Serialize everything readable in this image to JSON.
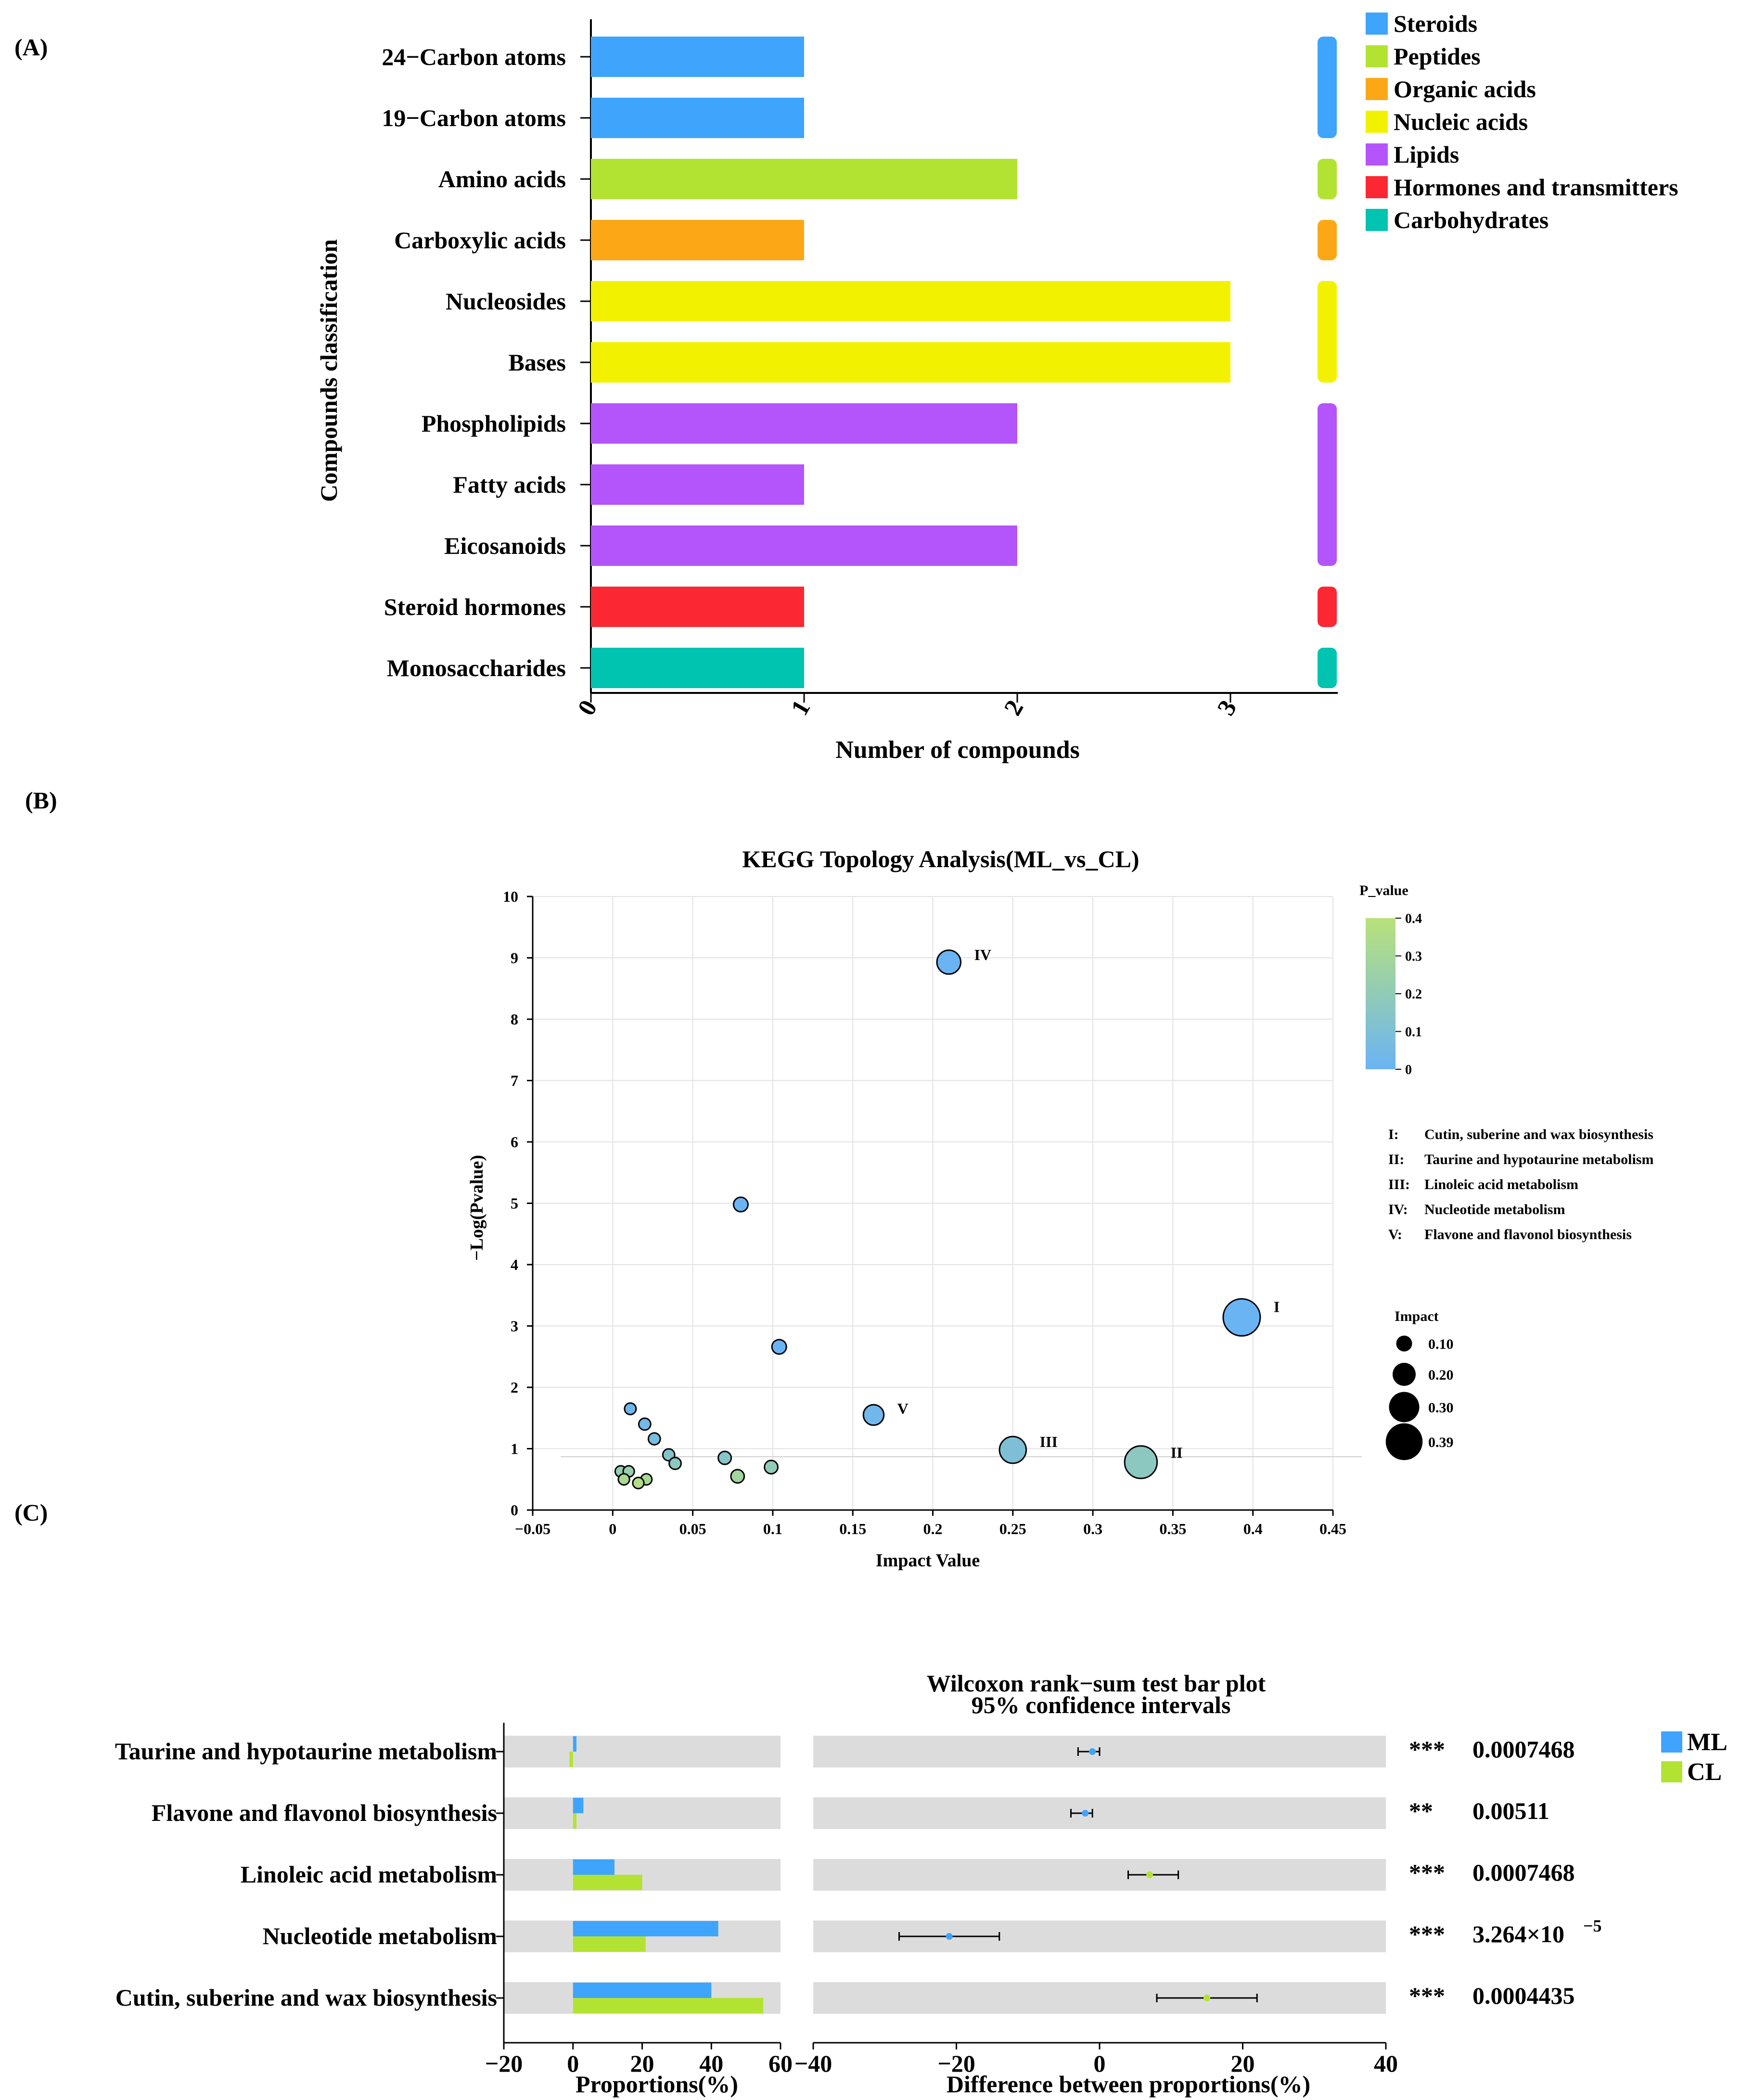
{
  "chart_data": [
    {
      "panel": "(A)",
      "type": "bar",
      "orientation": "horizontal",
      "xlabel": "Number of compounds",
      "ylabel": "Compounds classification",
      "xlim": [
        0,
        3.5
      ],
      "xticks": [
        "0",
        "1",
        "2",
        "3"
      ],
      "categories": [
        "24−Carbon atoms",
        "19−Carbon atoms",
        "Amino acids",
        "Carboxylic acids",
        "Nucleosides",
        "Bases",
        "Phospholipids",
        "Fatty acids",
        "Eicosanoids",
        "Steroid hormones",
        "Monosaccharides"
      ],
      "values": [
        1,
        1,
        2,
        1,
        3,
        3,
        2,
        1,
        2,
        1,
        1
      ],
      "groups": [
        "Steroids",
        "Steroids",
        "Peptides",
        "Organic acids",
        "Nucleic acids",
        "Nucleic acids",
        "Lipids",
        "Lipids",
        "Lipids",
        "Hormones and transmitters",
        "Carbohydrates"
      ],
      "legend": [
        {
          "name": "Steroids",
          "color": "#3fa4fb"
        },
        {
          "name": "Peptides",
          "color": "#b3e332"
        },
        {
          "name": "Organic acids",
          "color": "#fca816"
        },
        {
          "name": "Nucleic acids",
          "color": "#f2f200"
        },
        {
          "name": "Lipids",
          "color": "#b454fb"
        },
        {
          "name": "Hormones and transmitters",
          "color": "#fb2833"
        },
        {
          "name": "Carbohydrates",
          "color": "#00c3b0"
        }
      ]
    },
    {
      "panel": "(B)",
      "type": "scatter",
      "title": "KEGG Topology Analysis(ML_vs_CL)",
      "xlabel": "Impact Value",
      "ylabel": "−Log(Pvalue)",
      "xlim": [
        -0.05,
        0.45
      ],
      "ylim": [
        0,
        10
      ],
      "xticks": [
        "−0.05",
        "0",
        "0.05",
        "0.1",
        "0.15",
        "0.2",
        "0.25",
        "0.3",
        "0.35",
        "0.4",
        "0.45"
      ],
      "yticks": [
        "0",
        "1",
        "2",
        "3",
        "4",
        "5",
        "6",
        "7",
        "8",
        "9",
        "10"
      ],
      "threshold_y": 0.87,
      "points": [
        {
          "x": 0.393,
          "y": 3.14,
          "impact": 0.393,
          "p": 0.0007,
          "label": "I"
        },
        {
          "x": 0.33,
          "y": 0.78,
          "impact": 0.33,
          "p": 0.17,
          "label": "II"
        },
        {
          "x": 0.25,
          "y": 0.98,
          "impact": 0.25,
          "p": 0.1,
          "label": "III"
        },
        {
          "x": 0.21,
          "y": 8.93,
          "impact": 0.21,
          "p": 0.0,
          "label": "IV"
        },
        {
          "x": 0.163,
          "y": 1.55,
          "impact": 0.163,
          "p": 0.03,
          "label": "V"
        },
        {
          "x": 0.08,
          "y": 4.98,
          "impact": 0.08,
          "p": 0.0,
          "label": ""
        },
        {
          "x": 0.104,
          "y": 2.66,
          "impact": 0.08,
          "p": 0.002,
          "label": ""
        },
        {
          "x": 0.011,
          "y": 1.65,
          "impact": 0.04,
          "p": 0.02,
          "label": ""
        },
        {
          "x": 0.02,
          "y": 1.4,
          "impact": 0.045,
          "p": 0.04,
          "label": ""
        },
        {
          "x": 0.026,
          "y": 1.16,
          "impact": 0.045,
          "p": 0.07,
          "label": ""
        },
        {
          "x": 0.035,
          "y": 0.9,
          "impact": 0.045,
          "p": 0.13,
          "label": ""
        },
        {
          "x": 0.039,
          "y": 0.76,
          "impact": 0.045,
          "p": 0.17,
          "label": ""
        },
        {
          "x": 0.07,
          "y": 0.85,
          "impact": 0.06,
          "p": 0.14,
          "label": ""
        },
        {
          "x": 0.099,
          "y": 0.7,
          "impact": 0.065,
          "p": 0.2,
          "label": ""
        },
        {
          "x": 0.078,
          "y": 0.55,
          "impact": 0.065,
          "p": 0.28,
          "label": ""
        },
        {
          "x": 0.005,
          "y": 0.63,
          "impact": 0.035,
          "p": 0.23,
          "label": ""
        },
        {
          "x": 0.01,
          "y": 0.63,
          "impact": 0.035,
          "p": 0.23,
          "label": ""
        },
        {
          "x": 0.007,
          "y": 0.5,
          "impact": 0.035,
          "p": 0.32,
          "label": ""
        },
        {
          "x": 0.021,
          "y": 0.5,
          "impact": 0.035,
          "p": 0.32,
          "label": ""
        },
        {
          "x": 0.016,
          "y": 0.44,
          "impact": 0.035,
          "p": 0.36,
          "label": ""
        }
      ],
      "colorbar": {
        "title": "P_value",
        "ticks": [
          "0",
          "0.1",
          "0.2",
          "0.3",
          "0.4"
        ],
        "range": [
          0,
          0.4
        ],
        "low_color": "#6ab4f4",
        "high_color": "#b9e17a"
      },
      "pathway_legend": [
        {
          "roman": "I:",
          "text": "Cutin, suberine and wax biosynthesis"
        },
        {
          "roman": "II:",
          "text": "Taurine and hypotaurine metabolism"
        },
        {
          "roman": "III:",
          "text": "Linoleic acid metabolism"
        },
        {
          "roman": "IV:",
          "text": "Nucleotide metabolism"
        },
        {
          "roman": "V:",
          "text": "Flavone and flavonol biosynthesis"
        }
      ],
      "size_legend": {
        "title": "Impact",
        "values": [
          0.1,
          0.2,
          0.3,
          0.39
        ],
        "labels": [
          "0.10",
          "0.20",
          "0.30",
          "0.39"
        ]
      }
    },
    {
      "panel": "(C)",
      "type": "bar",
      "title": "Wilcoxon rank−sum test bar plot",
      "subtitle": "95% confidence intervals",
      "categories": [
        "Taurine and hypotaurine metabolism",
        "Flavone and flavonol biosynthesis",
        "Linoleic acid metabolism",
        "Nucleotide metabolism",
        "Cutin, suberine and wax biosynthesis"
      ],
      "series": [
        {
          "name": "ML",
          "color": "#3fa4fb",
          "values": [
            1,
            3,
            12,
            42,
            40
          ]
        },
        {
          "name": "CL",
          "color": "#b3e332",
          "values": [
            -1,
            1,
            20,
            21,
            55
          ]
        }
      ],
      "left_xlabel": "Proportions(%)",
      "left_xlim": [
        -20,
        60
      ],
      "left_xticks": [
        "−20",
        "0",
        "20",
        "40",
        "60"
      ],
      "right_xlabel": "Difference between proportions(%)",
      "right_xlim": [
        -40,
        40
      ],
      "right_xticks": [
        "−40",
        "−20",
        "0",
        "20",
        "40"
      ],
      "differences": [
        {
          "mean": -1,
          "low": -3,
          "high": 0,
          "color": "#3fa4fb"
        },
        {
          "mean": -2,
          "low": -4,
          "high": -1,
          "color": "#3fa4fb"
        },
        {
          "mean": 7,
          "low": 4,
          "high": 11,
          "color": "#b3e332"
        },
        {
          "mean": -21,
          "low": -28,
          "high": -14,
          "color": "#3fa4fb"
        },
        {
          "mean": 15,
          "low": 8,
          "high": 22,
          "color": "#b3e332"
        }
      ],
      "significance": [
        "***",
        "**",
        "***",
        "***",
        "***"
      ],
      "pvalues": [
        "0.0007468",
        "0.00511",
        "0.0007468",
        "3.264×10",
        "0.0004435"
      ],
      "pvalue_exponent": "−5"
    }
  ],
  "panel_labels": {
    "a": "(A)",
    "b": "(B)",
    "c": "(C)"
  }
}
